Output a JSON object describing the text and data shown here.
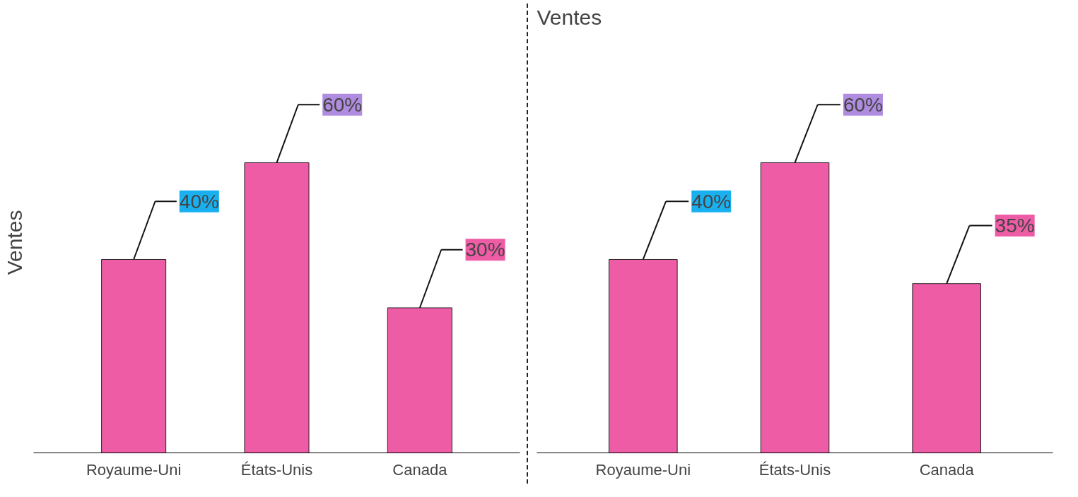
{
  "chart_data": [
    {
      "type": "bar",
      "ylabel": "Ventes",
      "categories": [
        "Royaume-Uni",
        "États-Unis",
        "Canada"
      ],
      "values": [
        40,
        60,
        30
      ],
      "value_labels": [
        "40%",
        "60%",
        "30%"
      ],
      "color": "#ee5ca5",
      "tick_labels": "x",
      "grid": false
    },
    {
      "type": "bar",
      "title": "Ventes",
      "categories": [
        "Royaume-Uni",
        "États-Unis",
        "Canada"
      ],
      "values": [
        40,
        60,
        35
      ],
      "value_labels": [
        "40%",
        "60%",
        "35%"
      ],
      "color": "#ee5ca5",
      "tick_labels": "x",
      "grid": false
    }
  ]
}
